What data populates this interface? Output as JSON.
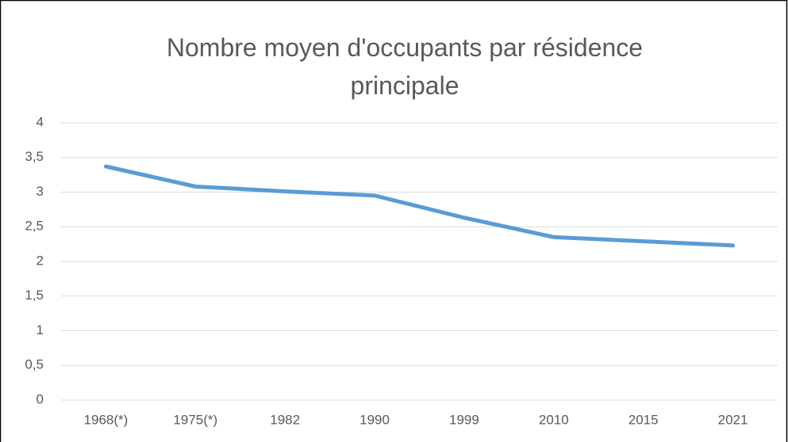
{
  "chart_data": {
    "type": "line",
    "title": "Nombre moyen d'occupants par résidence principale",
    "categories": [
      "1968(*)",
      "1975(*)",
      "1982",
      "1990",
      "1999",
      "2010",
      "2015",
      "2021"
    ],
    "series": [
      {
        "name": "Nombre moyen d'occupants par résidence principale",
        "color": "#5b9bd5",
        "values": [
          3.37,
          3.08,
          3.01,
          2.95,
          2.63,
          2.35,
          2.29,
          2.23
        ]
      }
    ],
    "ylim": [
      0,
      4
    ],
    "yticks": [
      0,
      {
        "value": 0.5,
        "label": "0,5"
      },
      1,
      {
        "value": 1.5,
        "label": "1,5"
      },
      2,
      {
        "value": 2.5,
        "label": "2,5"
      },
      3,
      {
        "value": 3.5,
        "label": "3,5"
      },
      4
    ],
    "grid": true
  }
}
